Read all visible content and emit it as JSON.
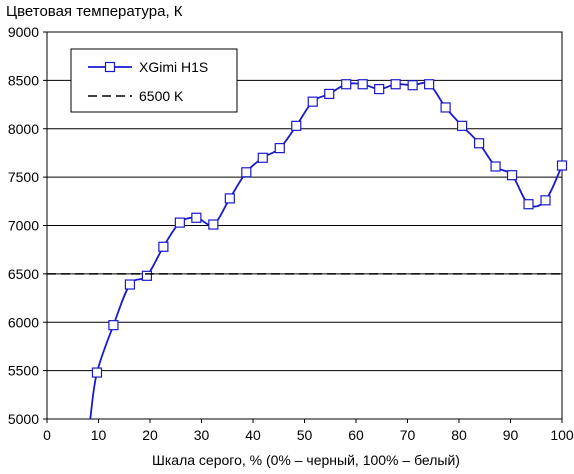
{
  "chart_data": {
    "type": "line",
    "title": "Цветовая температура, К",
    "xlabel": "Шкала серого, % (0% – черный, 100% – белый)",
    "ylabel": "",
    "xlim": [
      0,
      100
    ],
    "ylim": [
      5000,
      9000
    ],
    "x_ticks": [
      0,
      10,
      20,
      30,
      40,
      50,
      60,
      70,
      80,
      90,
      100
    ],
    "y_ticks": [
      5000,
      5500,
      6000,
      6500,
      7000,
      7500,
      8000,
      8500,
      9000
    ],
    "grid": "horizontal",
    "legend_position": "top-left",
    "series": [
      {
        "name": "XGimi H1S",
        "color": "#1a1acc",
        "marker": "square",
        "x": [
          9.7,
          12.9,
          16.1,
          19.4,
          22.6,
          25.8,
          29.0,
          32.3,
          35.5,
          38.7,
          41.9,
          45.2,
          48.4,
          51.6,
          54.8,
          58.1,
          61.3,
          64.5,
          67.7,
          71.0,
          74.2,
          77.4,
          80.6,
          83.9,
          87.1,
          90.3,
          93.5,
          96.8,
          100.0
        ],
        "values": [
          5480,
          5970,
          6390,
          6480,
          6780,
          7030,
          7080,
          7010,
          7280,
          7550,
          7700,
          7800,
          8030,
          8280,
          8360,
          8460,
          8460,
          8410,
          8460,
          8450,
          8460,
          8220,
          8030,
          7850,
          7610,
          7520,
          7220,
          7260,
          7620
        ],
        "curve_start": [
          8.4,
          5000
        ]
      },
      {
        "name": "6500 K",
        "color": "#000000",
        "style": "dashed",
        "x": [
          0,
          100
        ],
        "values": [
          6500,
          6500
        ]
      }
    ]
  }
}
